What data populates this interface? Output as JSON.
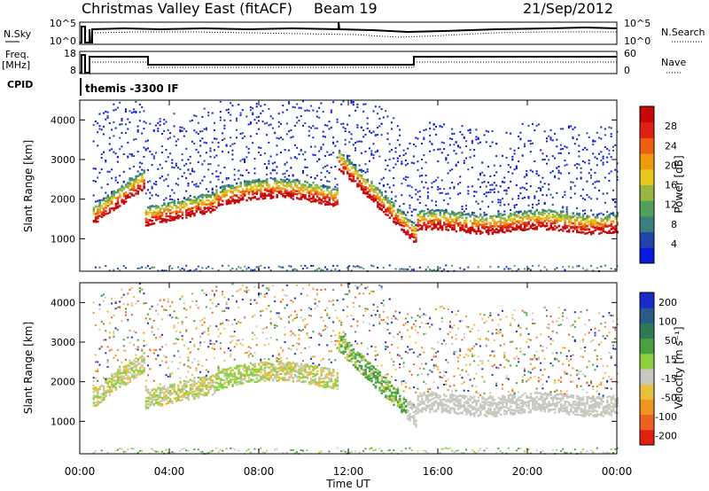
{
  "header": {
    "title": "Christmas Valley East (fitACF)",
    "beam": "Beam 19",
    "date": "21/Sep/2012"
  },
  "panels": {
    "nsky": {
      "label": "N.Sky",
      "ticks_left": [
        "10^5",
        "10^0"
      ],
      "ticks_right": [
        "10^5",
        "10^0"
      ],
      "legend": "N.Search"
    },
    "freq": {
      "label_line1": "Freq.",
      "label_line2": "[MHz]",
      "ticks_left": [
        "18",
        "8"
      ],
      "ticks_right": [
        "60",
        "0"
      ],
      "legend": "Nave"
    },
    "cpid": {
      "label": "CPID",
      "value": "themis -3300 IF"
    }
  },
  "chart_data": [
    {
      "type": "heatmap",
      "name": "power",
      "ylabel": "Slant Range [km]",
      "yticks": [
        "1000",
        "2000",
        "3000",
        "4000"
      ],
      "colorbar": {
        "label": "Power [dB]",
        "ticks": [
          "4",
          "8",
          "12",
          "16",
          "20",
          "24",
          "28"
        ],
        "colors": [
          "#0a18e0",
          "#2044a8",
          "#3a7e7e",
          "#52a05a",
          "#9ab640",
          "#e8c81c",
          "#f09a10",
          "#ec6010",
          "#e02010",
          "#c80808"
        ]
      },
      "ylim": [
        180,
        4500
      ]
    },
    {
      "type": "heatmap",
      "name": "velocity",
      "ylabel": "Slant Range [km]",
      "yticks": [
        "1000",
        "2000",
        "3000",
        "4000"
      ],
      "colorbar": {
        "label": "Velocity [m s⁻¹]",
        "ticks": [
          "200",
          "100",
          "50",
          "15",
          "-15",
          "-50",
          "-100",
          "-200"
        ],
        "colors": [
          "#1a2cc8",
          "#2a5a8a",
          "#2e7a54",
          "#4aa040",
          "#8cd040",
          "#c8c8c0",
          "#e8c040",
          "#f09420",
          "#ec6020",
          "#e02010"
        ]
      },
      "ylim": [
        180,
        4500
      ]
    }
  ],
  "xaxis": {
    "label": "Time UT",
    "ticks": [
      "00:00",
      "04:00",
      "08:00",
      "12:00",
      "16:00",
      "20:00",
      "00:00"
    ]
  }
}
